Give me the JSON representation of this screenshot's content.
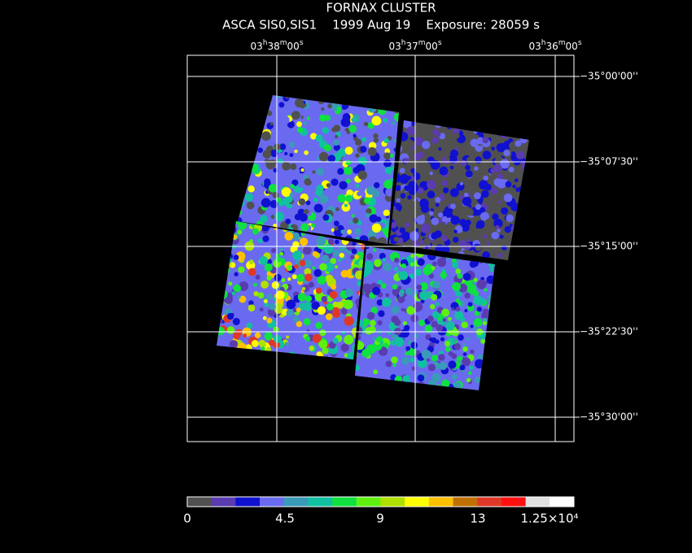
{
  "header": {
    "title": "FORNAX CLUSTER",
    "subtitle": "ASCA SIS0,SIS1    1999 Aug 19    Exposure: 28059 s"
  },
  "ra_labels": [
    "03h38m00s",
    "03h37m00s",
    "03h36m00s"
  ],
  "dec_labels": [
    "−35°00'00''",
    "−35°07'30''",
    "−35°15'00''",
    "−35°22'30''",
    "−35°30'00''"
  ],
  "colorbar": {
    "colors": [
      "#505050",
      "#5a3bb0",
      "#1010d0",
      "#6a6af0",
      "#3a9ab8",
      "#10c0a0",
      "#10e040",
      "#60f010",
      "#b0e000",
      "#ffff00",
      "#ffc000",
      "#c07000",
      "#e03828",
      "#ff1010",
      "#e0e0e0",
      "#ffffff"
    ],
    "labels": [
      "0",
      "4.5",
      "9",
      "13",
      "1.25×10⁴"
    ]
  }
}
